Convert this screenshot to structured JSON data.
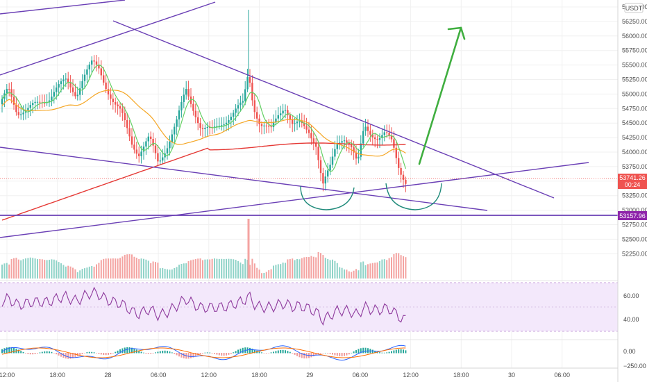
{
  "currency": "USDT",
  "chart_data": {
    "type": "candlestick",
    "price_axis": {
      "ticks": [
        "56500.00",
        "56250.00",
        "56000.00",
        "55750.00",
        "55500.00",
        "55250.00",
        "55000.00",
        "54750.00",
        "54500.00",
        "54250.00",
        "54000.00",
        "53750.00",
        "53500.00",
        "53250.00",
        "53000.00",
        "52750.00",
        "52500.00",
        "52250.00"
      ],
      "last_price": "53741.26",
      "countdown": "00:24",
      "support_price": "53157.96"
    },
    "rsi_axis": {
      "ticks": [
        "60.00",
        "40.00"
      ]
    },
    "macd_axis": {
      "ticks": [
        "0.00",
        "−250.00"
      ]
    },
    "time_axis": {
      "ticks": [
        "12:00",
        "18:00",
        "28",
        "06:00",
        "12:00",
        "18:00",
        "29",
        "06:00",
        "12:00",
        "18:00",
        "30",
        "06:00"
      ]
    },
    "colors": {
      "up": "#26a69a",
      "down": "#ef5350",
      "drawing": "#6a3fb5",
      "ma_fast": "#63d063",
      "ma_mid": "#f5a623",
      "ma_slow": "#e53935",
      "arrow": "#3fae3f",
      "arc": "#1e8a7a",
      "rsi_line": "#8e3a9d",
      "macd_line": "#2962ff",
      "signal_line": "#ff6d00"
    }
  }
}
